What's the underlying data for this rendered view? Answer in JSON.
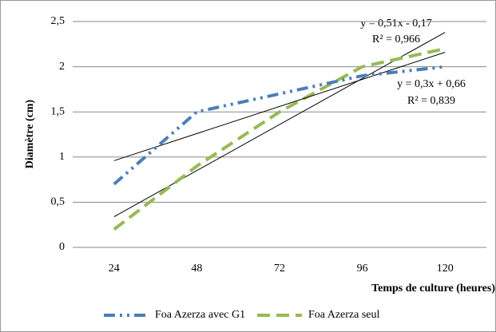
{
  "chart_data": {
    "type": "line",
    "categories": [
      "24",
      "48",
      "72",
      "96",
      "120"
    ],
    "x_label": "Temps de culture (heures)",
    "y_label": "Diamètre (cm)",
    "ylim": [
      0,
      2.5
    ],
    "yticks": [
      0,
      {
        "value": 0.5,
        "label": "0,5"
      },
      1,
      {
        "value": 1.5,
        "label": "1,5"
      },
      2,
      {
        "value": 2.5,
        "label": "2,5"
      }
    ],
    "grid": true,
    "legend": "bottom",
    "series": [
      {
        "name": "Foa Azerza avec G1",
        "color": "#4a7ebb",
        "dash": "dash-dot-dot",
        "values": [
          0.7,
          1.5,
          1.7,
          1.9,
          2.0
        ],
        "trendline": {
          "equation": "y = 0,3x + 0,66",
          "r_squared": "R² = 0,839"
        }
      },
      {
        "name": "Foa Azerza seul",
        "color": "#98b954",
        "dash": "dash",
        "values": [
          0.2,
          0.9,
          1.5,
          2.0,
          2.2
        ],
        "trendline": {
          "equation": "y = 0,51x - 0,17",
          "r_squared": "R² = 0,966"
        }
      }
    ]
  }
}
